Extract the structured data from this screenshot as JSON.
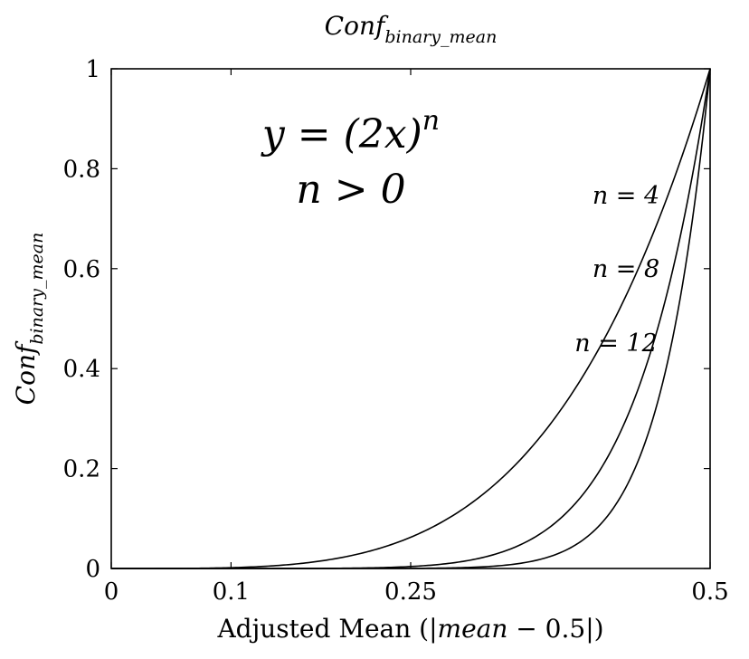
{
  "chart_data": {
    "type": "line",
    "title": {
      "base": "Conf",
      "subscript": "binary_mean"
    },
    "xlabel": {
      "prefix": "Adjusted Mean (|",
      "var": "mean",
      "suffix": " − 0.5|)"
    },
    "ylabel": {
      "base": "Conf",
      "subscript": "binary_mean"
    },
    "xlim": [
      0,
      0.5
    ],
    "ylim": [
      0,
      1
    ],
    "xticks": [
      0,
      0.1,
      0.25,
      0.5
    ],
    "xtick_labels": [
      "0",
      "0.1",
      "0.25",
      "0.5"
    ],
    "yticks": [
      0,
      0.2,
      0.4,
      0.6,
      0.8,
      1
    ],
    "ytick_labels": [
      "0",
      "0.2",
      "0.4",
      "0.6",
      "0.8",
      "1"
    ],
    "formula": [
      "y = (2x)",
      "n",
      "n > 0"
    ],
    "grid": false,
    "series": [
      {
        "name": "n = 4",
        "exponent": 4
      },
      {
        "name": "n = 8",
        "exponent": 8
      },
      {
        "name": "n = 12",
        "exponent": 12
      }
    ],
    "line_color": "#000000"
  }
}
